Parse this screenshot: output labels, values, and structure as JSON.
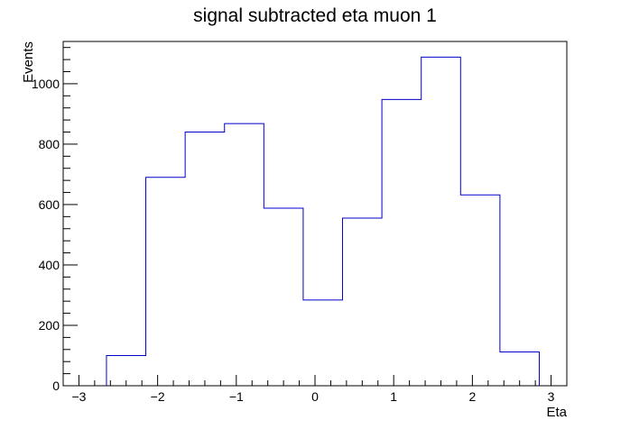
{
  "chart_data": {
    "type": "bar",
    "style": "step-histogram",
    "title": "signal subtracted eta muon 1",
    "xlabel": "Eta",
    "ylabel": "Events",
    "xlim": [
      -3.2,
      3.2
    ],
    "ylim": [
      0,
      1140
    ],
    "x_ticks": [
      -3,
      -2,
      -1,
      0,
      1,
      2,
      3
    ],
    "x_tick_labels": [
      "−3",
      "−2",
      "−1",
      "0",
      "1",
      "2",
      "3"
    ],
    "y_ticks": [
      0,
      200,
      400,
      600,
      800,
      1000
    ],
    "y_tick_labels": [
      "0",
      "200",
      "400",
      "600",
      "800",
      "1000"
    ],
    "bin_edges": [
      -2.65,
      -2.15,
      -1.65,
      -1.15,
      -0.65,
      -0.15,
      0.35,
      0.85,
      1.35,
      1.85,
      2.35,
      2.85
    ],
    "values": [
      100,
      690,
      840,
      868,
      588,
      284,
      555,
      948,
      1088,
      632,
      112
    ],
    "grid": false,
    "legend": "none",
    "line_color": "#0000cc"
  }
}
